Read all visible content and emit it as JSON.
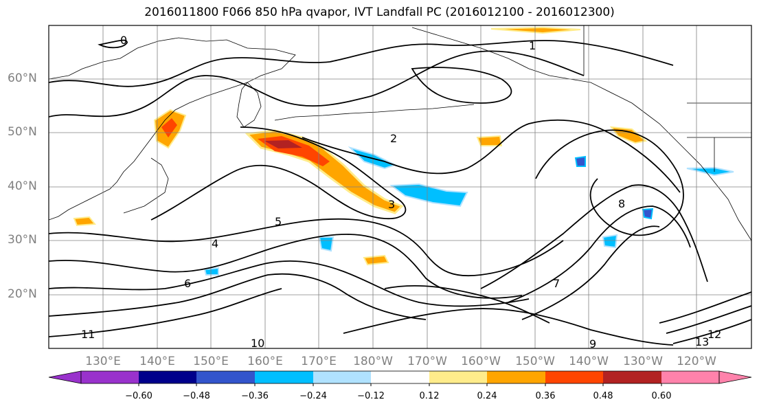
{
  "title": "2016011800 F066 850 hPa qvapor, IVT Landfall PC (2016012100 - 2016012300)",
  "latitude_labels": [
    "60°N",
    "50°N",
    "40°N",
    "30°N",
    "20°N"
  ],
  "longitude_labels": [
    "130°E",
    "140°E",
    "150°E",
    "160°E",
    "170°E",
    "180°W",
    "170°W",
    "160°W",
    "150°W",
    "140°W",
    "130°W",
    "120°W"
  ],
  "colorbar": {
    "ticks": [
      "−0.60",
      "−0.48",
      "−0.36",
      "−0.24",
      "−0.12",
      "0.12",
      "0.24",
      "0.36",
      "0.48",
      "0.60"
    ],
    "colors": [
      "#9932cc",
      "#00008b",
      "#3355cc",
      "#00bfff",
      "#b0e2ff",
      "#ffffff",
      "#ffec8b",
      "#ffa500",
      "#ff4500",
      "#b22222",
      "#ff82ab"
    ]
  },
  "contour_labels": [
    "0",
    "1",
    "2",
    "3",
    "4",
    "5",
    "6",
    "7",
    "8",
    "9",
    "10",
    "11",
    "12",
    "13"
  ],
  "colors": {
    "gridline": "#808080",
    "coastline": "#000000",
    "contour": "#000000"
  }
}
